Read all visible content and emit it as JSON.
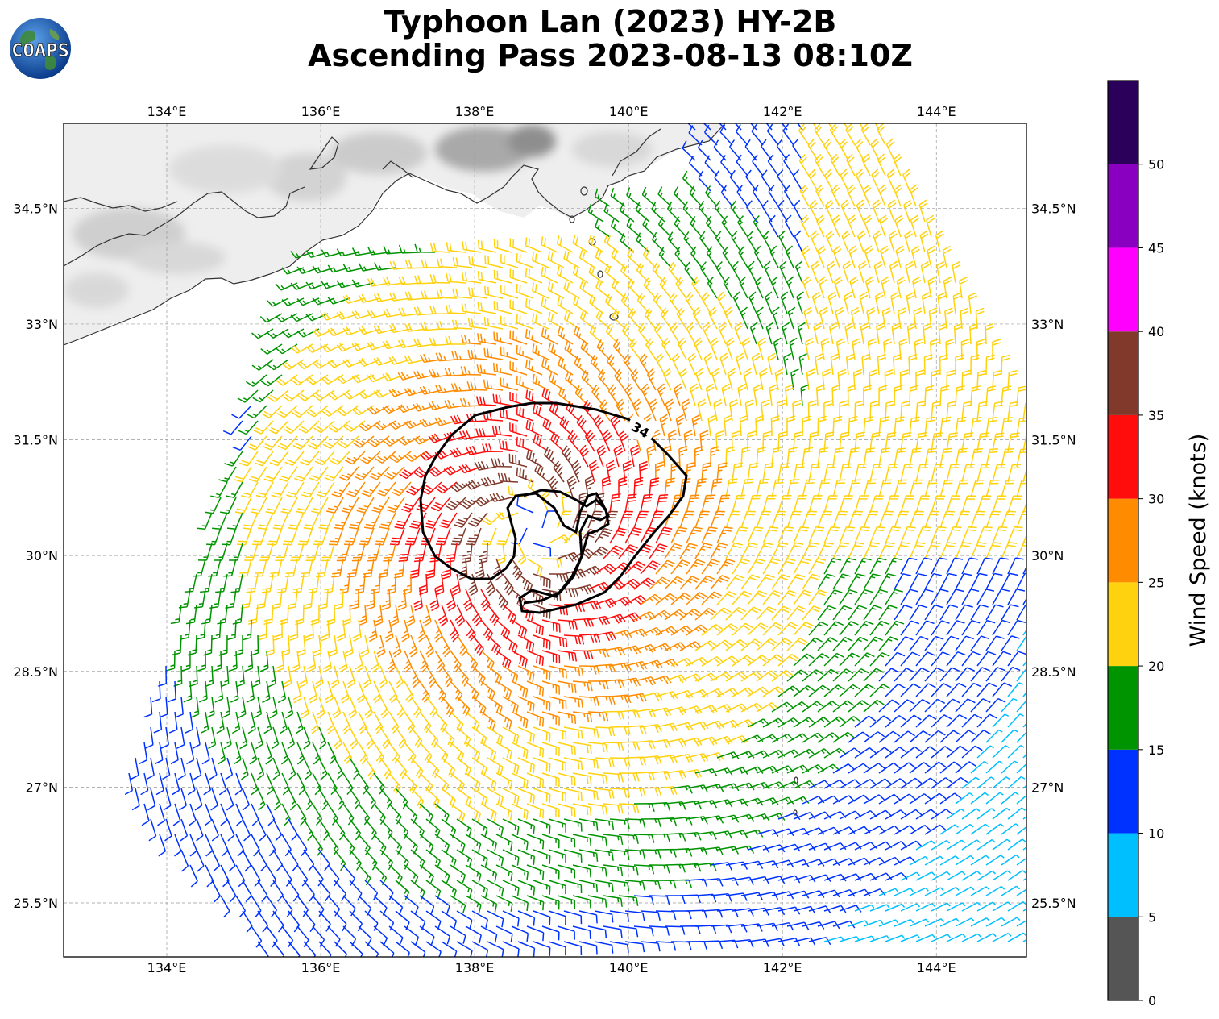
{
  "title": {
    "line1": "Typhoon Lan (2023) HY-2B",
    "line2": "Ascending Pass 2023-08-13 08:10Z"
  },
  "logo": {
    "text": "COAPS",
    "icon": "globe-icon"
  },
  "map": {
    "lon_range": [
      132.66,
      145.17
    ],
    "lat_range": [
      24.8,
      35.6
    ],
    "lon_ticks": [
      {
        "value": 134,
        "label": "134°E"
      },
      {
        "value": 136,
        "label": "136°E"
      },
      {
        "value": 138,
        "label": "138°E"
      },
      {
        "value": 140,
        "label": "140°E"
      },
      {
        "value": 142,
        "label": "142°E"
      },
      {
        "value": 144,
        "label": "144°E"
      }
    ],
    "lat_ticks": [
      {
        "value": 34.5,
        "label": "34.5°N"
      },
      {
        "value": 33,
        "label": "33°N"
      },
      {
        "value": 31.5,
        "label": "31.5°N"
      },
      {
        "value": 30,
        "label": "30°N"
      },
      {
        "value": 28.5,
        "label": "28.5°N"
      },
      {
        "value": 27,
        "label": "27°N"
      },
      {
        "value": 25.5,
        "label": "25.5°N"
      }
    ],
    "grid": true,
    "storm_center": {
      "lon": 138.75,
      "lat": 30.35
    },
    "contour": {
      "label": "34",
      "level_knots": 34,
      "center_lon": 139.1,
      "center_lat": 30.5
    }
  },
  "colorbar": {
    "title": "Wind Speed (knots)",
    "bins": [
      {
        "min": 0,
        "max": 5,
        "color": "#555555"
      },
      {
        "min": 5,
        "max": 10,
        "color": "#00bfff"
      },
      {
        "min": 10,
        "max": 15,
        "color": "#0032ff"
      },
      {
        "min": 15,
        "max": 20,
        "color": "#009400"
      },
      {
        "min": 20,
        "max": 25,
        "color": "#ffd20f"
      },
      {
        "min": 25,
        "max": 30,
        "color": "#ff8c00"
      },
      {
        "min": 30,
        "max": 35,
        "color": "#ff0d0d"
      },
      {
        "min": 35,
        "max": 40,
        "color": "#80392a"
      },
      {
        "min": 40,
        "max": 45,
        "color": "#ff00ff"
      },
      {
        "min": 45,
        "max": 50,
        "color": "#8a00c0"
      },
      {
        "min": 50,
        "max": 55,
        "color": "#2a005a"
      }
    ],
    "tick_labels": [
      "0",
      "5",
      "10",
      "15",
      "20",
      "25",
      "30",
      "35",
      "40",
      "45",
      "50"
    ]
  }
}
